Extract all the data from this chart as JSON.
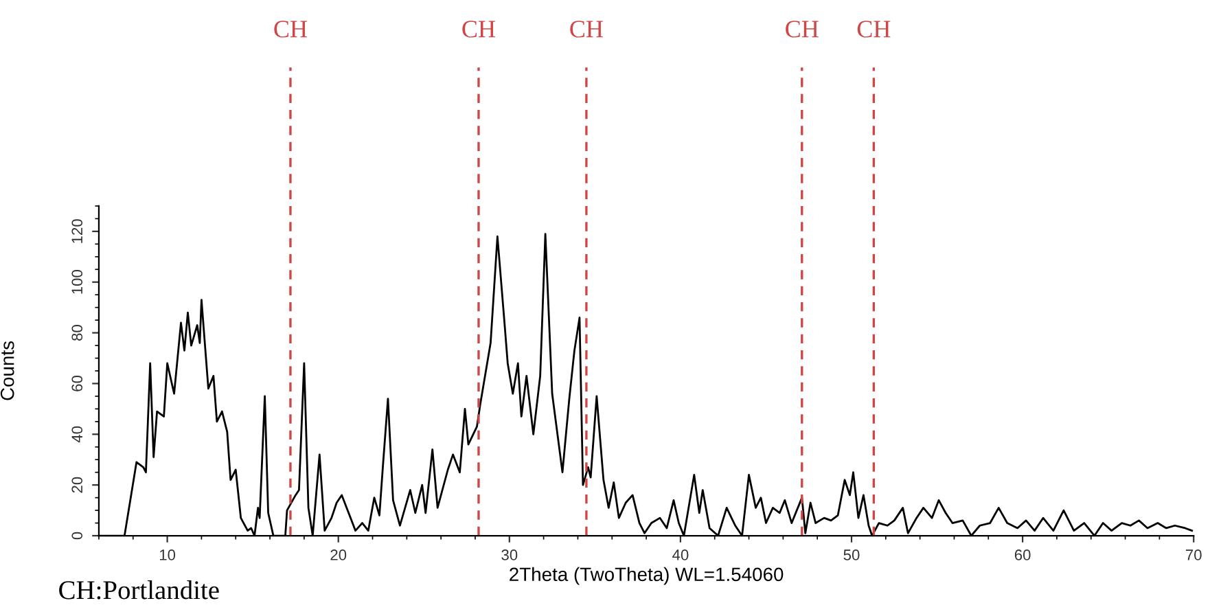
{
  "chart_data": {
    "type": "line",
    "xlabel": "2Theta (TwoTheta) WL=1.54060",
    "ylabel": "Counts",
    "x": [
      6.0,
      7.1,
      7.5,
      8.2,
      8.6,
      8.75,
      9.0,
      9.2,
      9.4,
      9.8,
      10.0,
      10.4,
      10.8,
      11.0,
      11.2,
      11.4,
      11.75,
      11.9,
      12.0,
      12.4,
      12.7,
      12.9,
      13.2,
      13.5,
      13.7,
      14.0,
      14.3,
      14.7,
      14.9,
      15.1,
      15.3,
      15.4,
      15.7,
      15.9,
      16.2,
      16.9,
      17.0,
      17.5,
      17.7,
      18.0,
      18.25,
      18.5,
      18.9,
      19.2,
      19.6,
      19.9,
      20.2,
      20.6,
      21.0,
      21.4,
      21.75,
      22.1,
      22.4,
      22.6,
      22.9,
      23.2,
      23.6,
      24.2,
      24.5,
      24.9,
      25.1,
      25.5,
      25.8,
      26.4,
      26.7,
      27.1,
      27.4,
      27.6,
      28.1,
      28.3,
      28.9,
      29.3,
      29.7,
      29.9,
      30.2,
      30.5,
      30.7,
      31.0,
      31.4,
      31.8,
      32.1,
      32.5,
      33.1,
      33.5,
      33.8,
      34.1,
      34.3,
      34.6,
      34.75,
      35.1,
      35.5,
      35.8,
      36.1,
      36.4,
      36.8,
      37.2,
      37.6,
      37.9,
      38.3,
      38.8,
      39.2,
      39.6,
      39.9,
      40.2,
      40.8,
      41.1,
      41.3,
      41.7,
      42.2,
      42.7,
      43.2,
      43.6,
      44.0,
      44.4,
      44.7,
      45.0,
      45.4,
      45.8,
      46.1,
      46.5,
      47.1,
      47.3,
      47.6,
      47.9,
      48.4,
      48.8,
      49.2,
      49.6,
      49.9,
      50.1,
      50.4,
      50.7,
      51.0,
      51.2,
      51.6,
      52.1,
      52.5,
      53.0,
      53.3,
      53.8,
      54.2,
      54.7,
      55.1,
      55.5,
      55.9,
      56.5,
      57.0,
      57.5,
      58.1,
      58.6,
      59.1,
      59.7,
      60.2,
      60.7,
      61.2,
      61.8,
      62.4,
      63.0,
      63.6,
      64.2,
      64.7,
      65.2,
      65.8,
      66.3,
      66.8,
      67.3,
      67.9,
      68.4,
      68.9,
      69.5,
      69.9
    ],
    "series": [
      {
        "color": "#000000",
        "values": [
          0,
          0,
          0,
          29,
          27,
          25,
          68,
          31,
          49,
          47,
          68,
          56,
          84,
          73,
          88,
          75,
          83,
          76,
          93,
          58,
          63,
          45,
          49,
          41,
          22,
          26,
          7,
          2,
          3,
          0,
          11,
          7,
          55,
          9,
          0,
          0,
          10,
          16,
          18,
          68,
          11,
          0,
          32,
          2,
          7,
          13,
          16,
          9,
          2,
          5,
          2,
          15,
          8,
          27,
          54,
          14,
          4,
          18,
          9,
          20,
          9,
          34,
          11,
          26,
          32,
          25,
          50,
          36,
          43,
          52,
          76,
          118,
          85,
          68,
          56,
          68,
          47,
          63,
          40,
          63,
          119,
          56,
          25,
          54,
          73,
          86,
          20,
          27,
          23,
          55,
          22,
          11,
          21,
          7,
          13,
          16,
          5,
          1,
          5,
          7,
          3,
          14,
          5,
          0,
          24,
          9,
          18,
          3,
          0,
          11,
          4,
          0,
          24,
          11,
          15,
          5,
          11,
          9,
          14,
          5,
          15,
          1,
          13,
          5,
          7,
          6,
          8,
          22,
          16,
          25,
          7,
          16,
          4,
          0,
          5,
          4,
          6,
          11,
          1,
          7,
          11,
          7,
          14,
          9,
          5,
          6,
          0,
          4,
          5,
          11,
          5,
          3,
          6,
          2,
          7,
          2,
          10,
          2,
          5,
          0,
          5,
          2,
          5,
          4,
          6,
          3,
          5,
          3,
          4,
          3,
          2
        ]
      }
    ],
    "xlim": [
      6,
      70
    ],
    "xticks": [
      10,
      20,
      30,
      40,
      50,
      60,
      70
    ],
    "ylim": [
      0,
      130
    ],
    "yticks": [
      0,
      20,
      40,
      60,
      80,
      100,
      120
    ],
    "ref_lines": [
      {
        "axis": "x",
        "value": 17.2,
        "label": "CH",
        "color": "#d04545",
        "line_style": "dashed"
      },
      {
        "axis": "x",
        "value": 28.2,
        "label": "CH",
        "color": "#d04545",
        "line_style": "dashed"
      },
      {
        "axis": "x",
        "value": 34.5,
        "label": "CH",
        "color": "#d04545",
        "line_style": "dashed"
      },
      {
        "axis": "x",
        "value": 47.1,
        "label": "CH",
        "color": "#d04545",
        "line_style": "dashed"
      },
      {
        "axis": "x",
        "value": 51.3,
        "label": "CH",
        "color": "#d04545",
        "line_style": "dashed"
      }
    ],
    "annotations": [
      "CH:Portlandite"
    ],
    "grid": false,
    "legend": false
  }
}
